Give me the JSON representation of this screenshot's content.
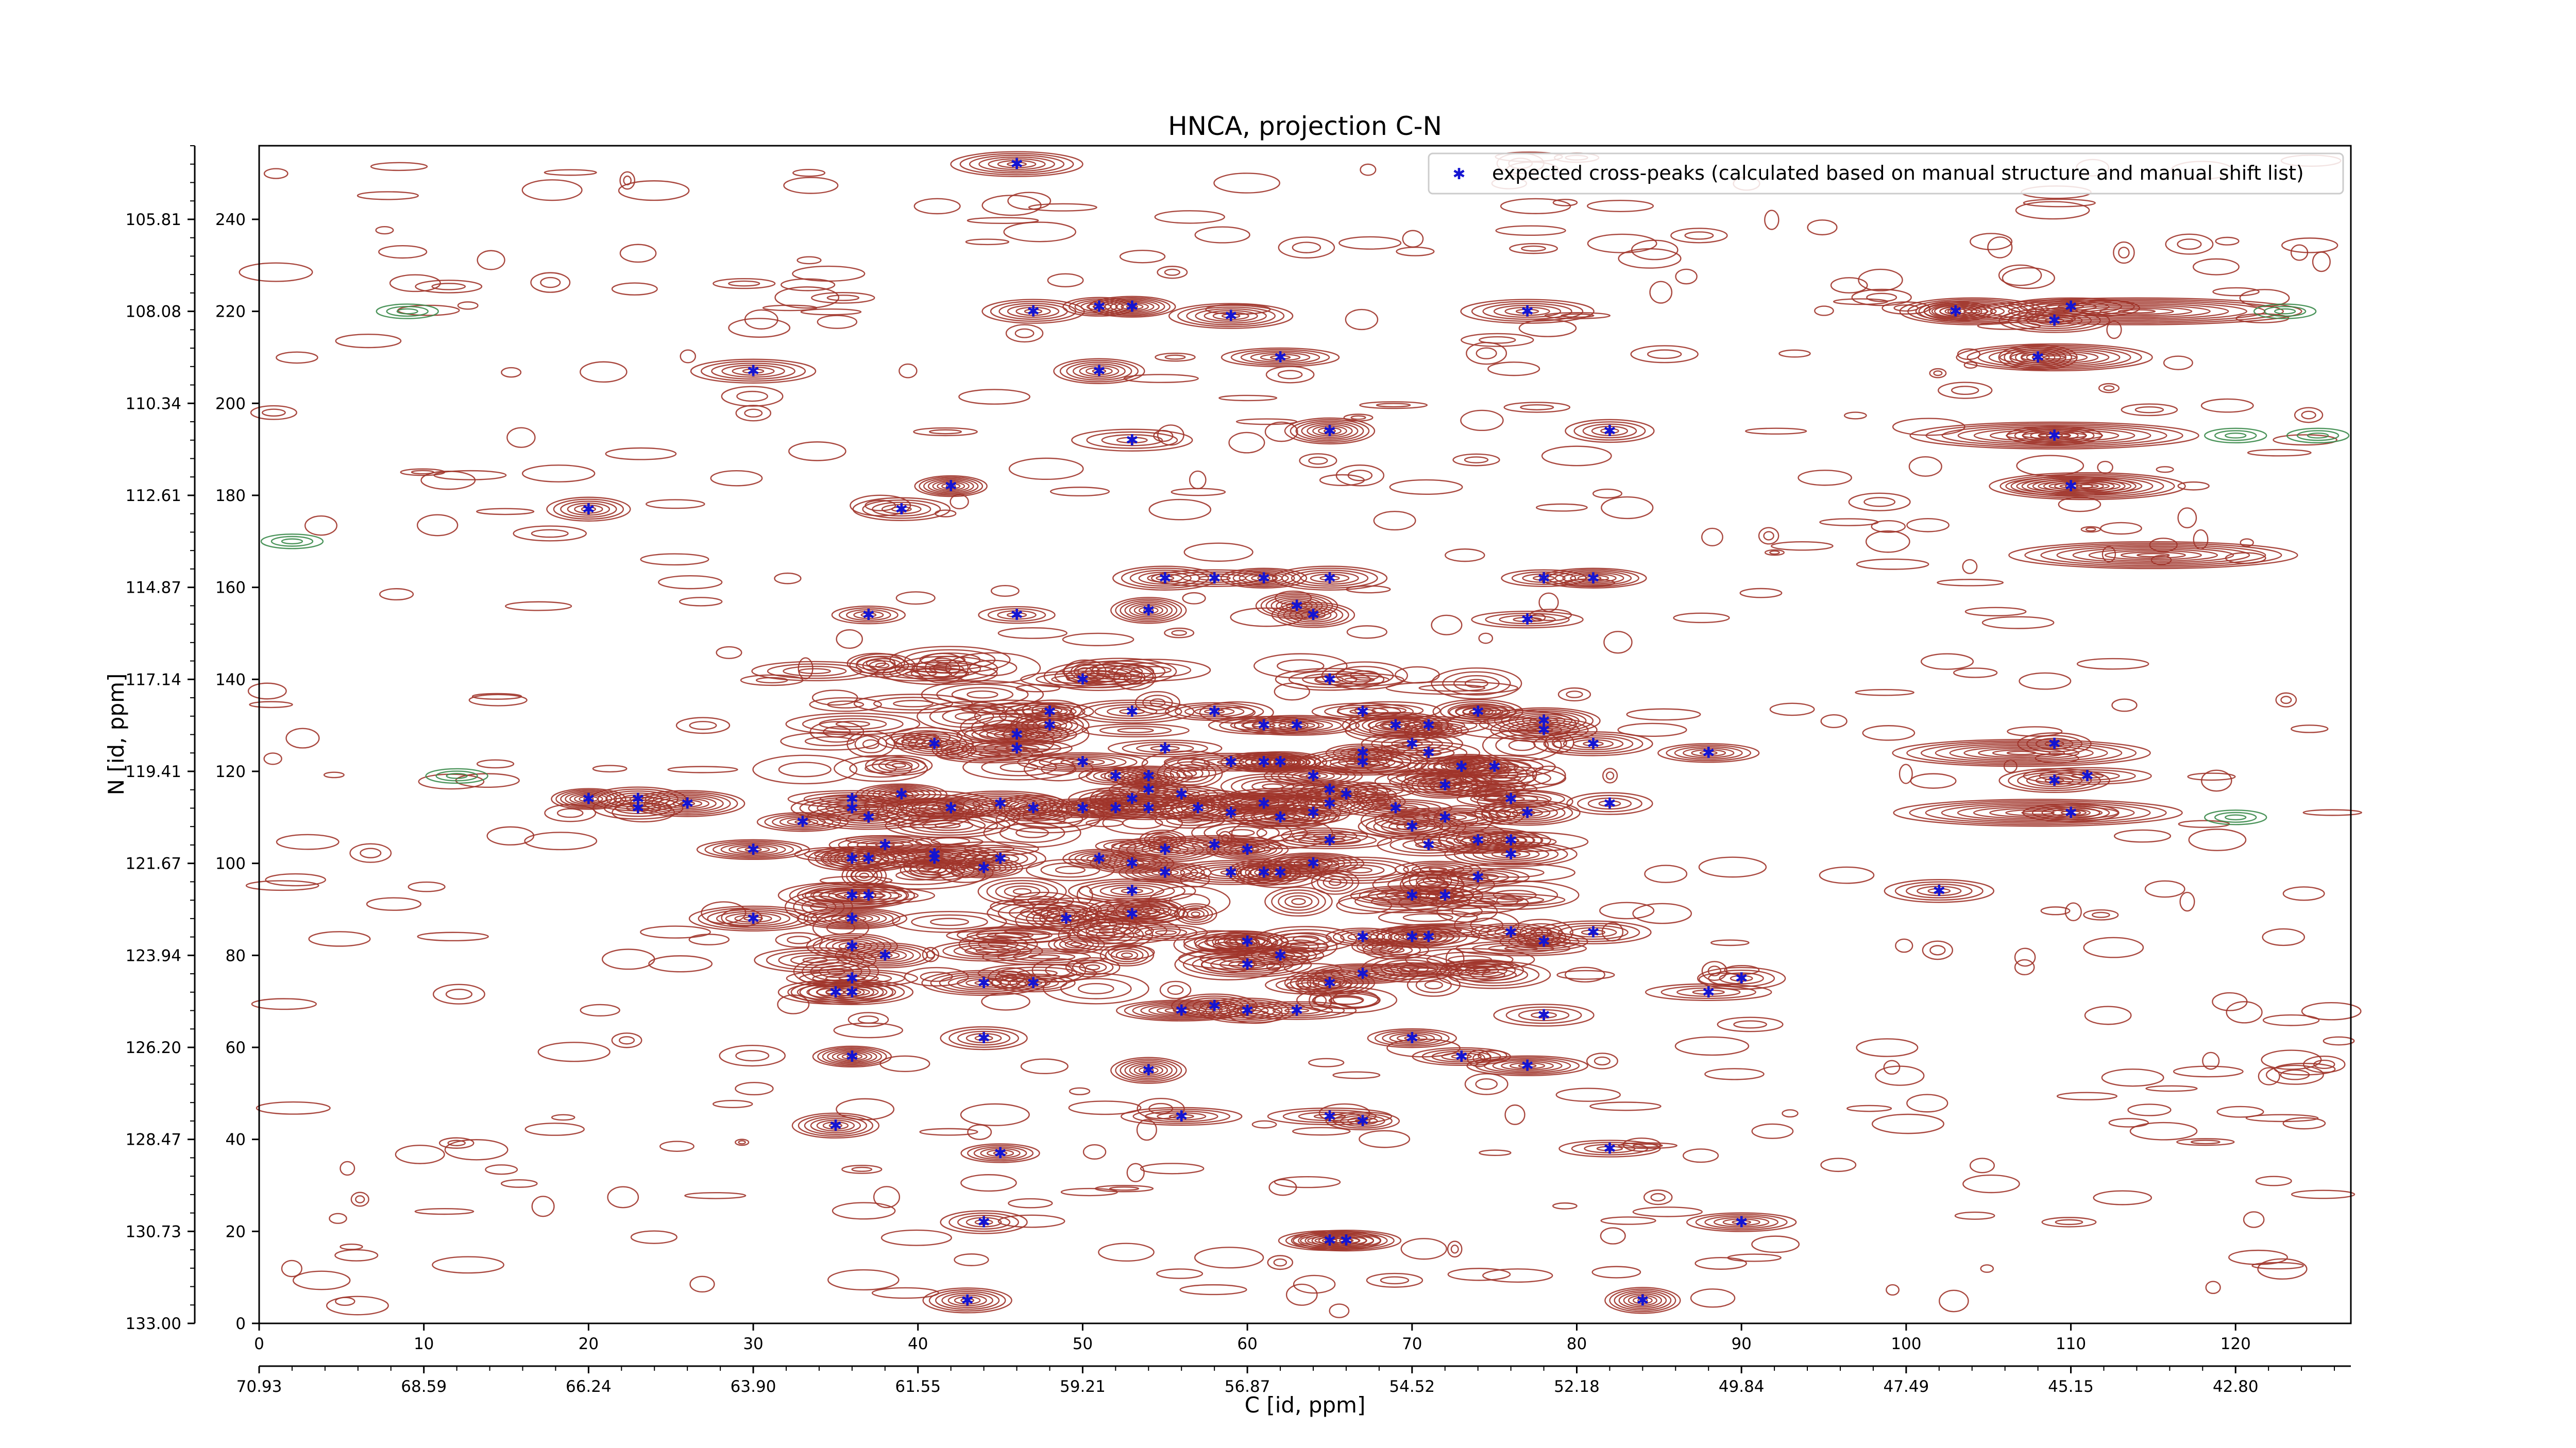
{
  "chart_data": {
    "type": "scatter",
    "title": "HNCA, projection C-N",
    "xlabel": "C [id, ppm]",
    "ylabel": "N [id, ppm]",
    "x_index_ticks": [
      "0",
      "10",
      "20",
      "30",
      "40",
      "50",
      "60",
      "70",
      "80",
      "90",
      "100",
      "110",
      "120"
    ],
    "x_ppm_ticks": [
      "70.93",
      "68.59",
      "66.24",
      "63.90",
      "61.55",
      "59.21",
      "56.87",
      "54.52",
      "52.18",
      "49.84",
      "47.49",
      "45.15",
      "42.80"
    ],
    "y_index_ticks": [
      "0",
      "20",
      "40",
      "60",
      "80",
      "100",
      "120",
      "140",
      "160",
      "180",
      "200",
      "220",
      "240"
    ],
    "y_ppm_ticks": [
      "133.00",
      "130.73",
      "128.47",
      "126.20",
      "123.94",
      "121.67",
      "119.41",
      "117.14",
      "114.87",
      "112.61",
      "110.34",
      "108.08",
      "105.81"
    ],
    "xlim": [
      0,
      127
    ],
    "ylim": [
      0,
      256
    ],
    "grid": false,
    "legend": {
      "position": "top-right",
      "entries": [
        "expected cross-peaks (calculated based on manual structure and manual shift list)"
      ]
    },
    "colors": {
      "positive_contour": "#a0342a",
      "negative_contour": "#3a8a4a",
      "marker": "#1414d2"
    },
    "series": [
      {
        "name": "expected cross-peaks (calculated based on manual structure and manual shift list)",
        "points": [
          [
            46,
            252
          ],
          [
            47,
            220
          ],
          [
            51,
            221
          ],
          [
            53,
            221
          ],
          [
            59,
            219
          ],
          [
            62,
            210
          ],
          [
            65,
            194
          ],
          [
            51,
            207
          ],
          [
            53,
            192
          ],
          [
            30,
            207
          ],
          [
            42,
            182
          ],
          [
            39,
            177
          ],
          [
            20,
            177
          ],
          [
            37,
            154
          ],
          [
            46,
            154
          ],
          [
            55,
            162
          ],
          [
            58,
            162
          ],
          [
            61,
            162
          ],
          [
            65,
            162
          ],
          [
            54,
            155
          ],
          [
            63,
            156
          ],
          [
            64,
            154
          ],
          [
            78,
            162
          ],
          [
            81,
            162
          ],
          [
            77,
            153
          ],
          [
            77,
            220
          ],
          [
            103,
            220
          ],
          [
            109,
            218
          ],
          [
            110,
            221
          ],
          [
            108,
            210
          ],
          [
            109,
            193
          ],
          [
            110,
            182
          ],
          [
            82,
            194
          ],
          [
            50,
            140
          ],
          [
            65,
            140
          ],
          [
            53,
            133
          ],
          [
            58,
            133
          ],
          [
            61,
            130
          ],
          [
            63,
            130
          ],
          [
            67,
            133
          ],
          [
            69,
            130
          ],
          [
            71,
            130
          ],
          [
            74,
            133
          ],
          [
            78,
            131
          ],
          [
            78,
            129
          ],
          [
            81,
            126
          ],
          [
            88,
            124
          ],
          [
            109,
            126
          ],
          [
            109,
            118
          ],
          [
            111,
            119
          ],
          [
            110,
            111
          ],
          [
            48,
            133
          ],
          [
            48,
            130
          ],
          [
            46,
            128
          ],
          [
            46,
            125
          ],
          [
            50,
            122
          ],
          [
            55,
            125
          ],
          [
            59,
            122
          ],
          [
            61,
            122
          ],
          [
            62,
            122
          ],
          [
            64,
            119
          ],
          [
            67,
            124
          ],
          [
            67,
            122
          ],
          [
            70,
            126
          ],
          [
            71,
            124
          ],
          [
            73,
            121
          ],
          [
            75,
            121
          ],
          [
            72,
            117
          ],
          [
            76,
            114
          ],
          [
            77,
            111
          ],
          [
            82,
            113
          ],
          [
            41,
            126
          ],
          [
            42,
            112
          ],
          [
            45,
            113
          ],
          [
            47,
            112
          ],
          [
            39,
            115
          ],
          [
            36,
            114
          ],
          [
            36,
            112
          ],
          [
            37,
            110
          ],
          [
            33,
            109
          ],
          [
            38,
            104
          ],
          [
            41,
            102
          ],
          [
            44,
            99
          ],
          [
            45,
            101
          ],
          [
            41,
            101
          ],
          [
            37,
            101
          ],
          [
            36,
            101
          ],
          [
            30,
            103
          ],
          [
            20,
            114
          ],
          [
            23,
            114
          ],
          [
            23,
            112
          ],
          [
            26,
            113
          ],
          [
            50,
            112
          ],
          [
            52,
            112
          ],
          [
            53,
            114
          ],
          [
            52,
            119
          ],
          [
            54,
            119
          ],
          [
            54,
            116
          ],
          [
            56,
            115
          ],
          [
            54,
            112
          ],
          [
            57,
            112
          ],
          [
            59,
            111
          ],
          [
            61,
            113
          ],
          [
            62,
            110
          ],
          [
            64,
            111
          ],
          [
            65,
            113
          ],
          [
            65,
            116
          ],
          [
            66,
            115
          ],
          [
            69,
            112
          ],
          [
            70,
            108
          ],
          [
            71,
            104
          ],
          [
            72,
            110
          ],
          [
            74,
            105
          ],
          [
            76,
            105
          ],
          [
            74,
            97
          ],
          [
            72,
            93
          ],
          [
            70,
            93
          ],
          [
            76,
            102
          ],
          [
            58,
            104
          ],
          [
            60,
            103
          ],
          [
            61,
            98
          ],
          [
            59,
            98
          ],
          [
            62,
            98
          ],
          [
            64,
            100
          ],
          [
            65,
            105
          ],
          [
            55,
            103
          ],
          [
            55,
            98
          ],
          [
            53,
            100
          ],
          [
            51,
            101
          ],
          [
            53,
            94
          ],
          [
            53,
            89
          ],
          [
            49,
            88
          ],
          [
            36,
            88
          ],
          [
            36,
            93
          ],
          [
            37,
            93
          ],
          [
            38,
            80
          ],
          [
            36,
            82
          ],
          [
            36,
            75
          ],
          [
            35,
            72
          ],
          [
            36,
            72
          ],
          [
            30,
            88
          ],
          [
            44,
            74
          ],
          [
            47,
            74
          ],
          [
            60,
            83
          ],
          [
            62,
            80
          ],
          [
            60,
            78
          ],
          [
            65,
            74
          ],
          [
            67,
            76
          ],
          [
            67,
            84
          ],
          [
            70,
            84
          ],
          [
            71,
            84
          ],
          [
            76,
            85
          ],
          [
            78,
            83
          ],
          [
            81,
            85
          ],
          [
            88,
            72
          ],
          [
            90,
            75
          ],
          [
            102,
            94
          ],
          [
            63,
            68
          ],
          [
            60,
            68
          ],
          [
            58,
            69
          ],
          [
            56,
            68
          ],
          [
            44,
            62
          ],
          [
            36,
            58
          ],
          [
            54,
            55
          ],
          [
            56,
            45
          ],
          [
            65,
            45
          ],
          [
            67,
            44
          ],
          [
            70,
            62
          ],
          [
            73,
            58
          ],
          [
            77,
            56
          ],
          [
            78,
            67
          ],
          [
            35,
            43
          ],
          [
            45,
            37
          ],
          [
            82,
            38
          ],
          [
            44,
            22
          ],
          [
            65,
            18
          ],
          [
            66,
            18
          ],
          [
            90,
            22
          ],
          [
            43,
            5
          ],
          [
            84,
            5
          ]
        ]
      }
    ]
  }
}
